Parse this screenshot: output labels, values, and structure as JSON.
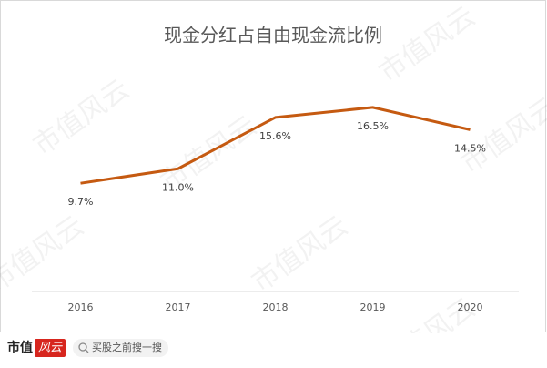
{
  "chart_data": {
    "type": "line",
    "title": "现金分红占自由现金流比例",
    "categories": [
      "2016",
      "2017",
      "2018",
      "2019",
      "2020"
    ],
    "series": [
      {
        "name": "现金分红占自由现金流比例",
        "color": "#c55a11",
        "values": [
          9.7,
          11.0,
          15.6,
          16.5,
          14.5
        ],
        "value_labels": [
          "9.7%",
          "11.0%",
          "15.6%",
          "16.5%",
          "14.5%"
        ]
      }
    ],
    "ylim": [
      0,
      20
    ],
    "grid": false
  },
  "watermark": "市值风云",
  "footer": {
    "logo_left": "市值",
    "logo_right": "风云",
    "search": "买股之前搜一搜"
  }
}
